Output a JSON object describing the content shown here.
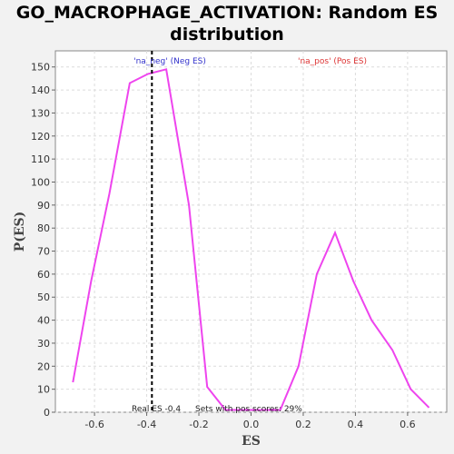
{
  "chart_data": {
    "type": "line",
    "title_line1": "GO_MACROPHAGE_ACTIVATION: Random ES",
    "title_line2": "distribution",
    "xlabel": "ES",
    "ylabel": "P(ES)",
    "xlim": [
      -0.75,
      0.75
    ],
    "ylim": [
      0,
      157
    ],
    "x_ticks": [
      -0.6,
      -0.4,
      -0.2,
      0.0,
      0.2,
      0.4,
      0.6
    ],
    "x_tick_labels": [
      "-0.6",
      "-0.4",
      "-0.2",
      "0.0",
      "0.2",
      "0.4",
      "0.6"
    ],
    "y_ticks": [
      0,
      10,
      20,
      30,
      40,
      50,
      60,
      70,
      80,
      90,
      100,
      110,
      120,
      130,
      140,
      150
    ],
    "y_tick_labels": [
      "0",
      "10",
      "20",
      "30",
      "40",
      "50",
      "60",
      "70",
      "80",
      "90",
      "100",
      "110",
      "120",
      "130",
      "140",
      "150"
    ],
    "grid": true,
    "series": [
      {
        "color": "#ee44ee",
        "points": [
          [
            -0.683,
            13
          ],
          [
            -0.613,
            57
          ],
          [
            -0.543,
            95
          ],
          [
            -0.465,
            143
          ],
          [
            -0.395,
            147
          ],
          [
            -0.325,
            149
          ],
          [
            -0.238,
            90
          ],
          [
            -0.168,
            11
          ],
          [
            -0.098,
            1
          ],
          [
            -0.028,
            1
          ],
          [
            0.042,
            1
          ],
          [
            0.112,
            1
          ],
          [
            0.182,
            20
          ],
          [
            0.252,
            60
          ],
          [
            0.322,
            78
          ],
          [
            0.392,
            57
          ],
          [
            0.462,
            40
          ],
          [
            0.542,
            27
          ],
          [
            0.612,
            10
          ],
          [
            0.682,
            2
          ]
        ]
      }
    ],
    "real_es": -0.38,
    "real_es_color": "#000000",
    "annotations": {
      "neg_label": "'na_neg' (Neg ES)",
      "neg_color": "#3333cc",
      "pos_label": "'na_pos' (Pos ES)",
      "pos_color": "#dd3333",
      "real_es_label": "Real ES -0.4",
      "pos_scores_label": "Sets with pos scores: 29%"
    }
  }
}
